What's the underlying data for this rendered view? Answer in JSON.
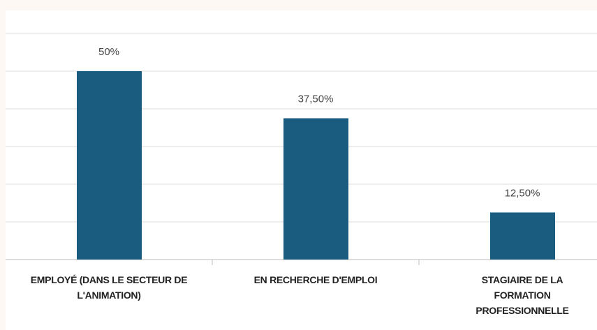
{
  "chart_data": {
    "type": "bar",
    "categories": [
      "EMPLOYÉ (DANS LE SECTEUR DE L'ANIMATION)",
      "EN RECHERCHE D'EMPLOI",
      "STAGIAIRE DE LA FORMATION PROFESSIONNELLE"
    ],
    "values": [
      50,
      37.5,
      12.5
    ],
    "value_labels": [
      "50%",
      "37,50%",
      "12,50%"
    ],
    "color": "#1a5c80",
    "ylim": [
      0,
      60
    ],
    "yticks": [
      0,
      10,
      20,
      30,
      40,
      50,
      60
    ],
    "grid": true
  }
}
